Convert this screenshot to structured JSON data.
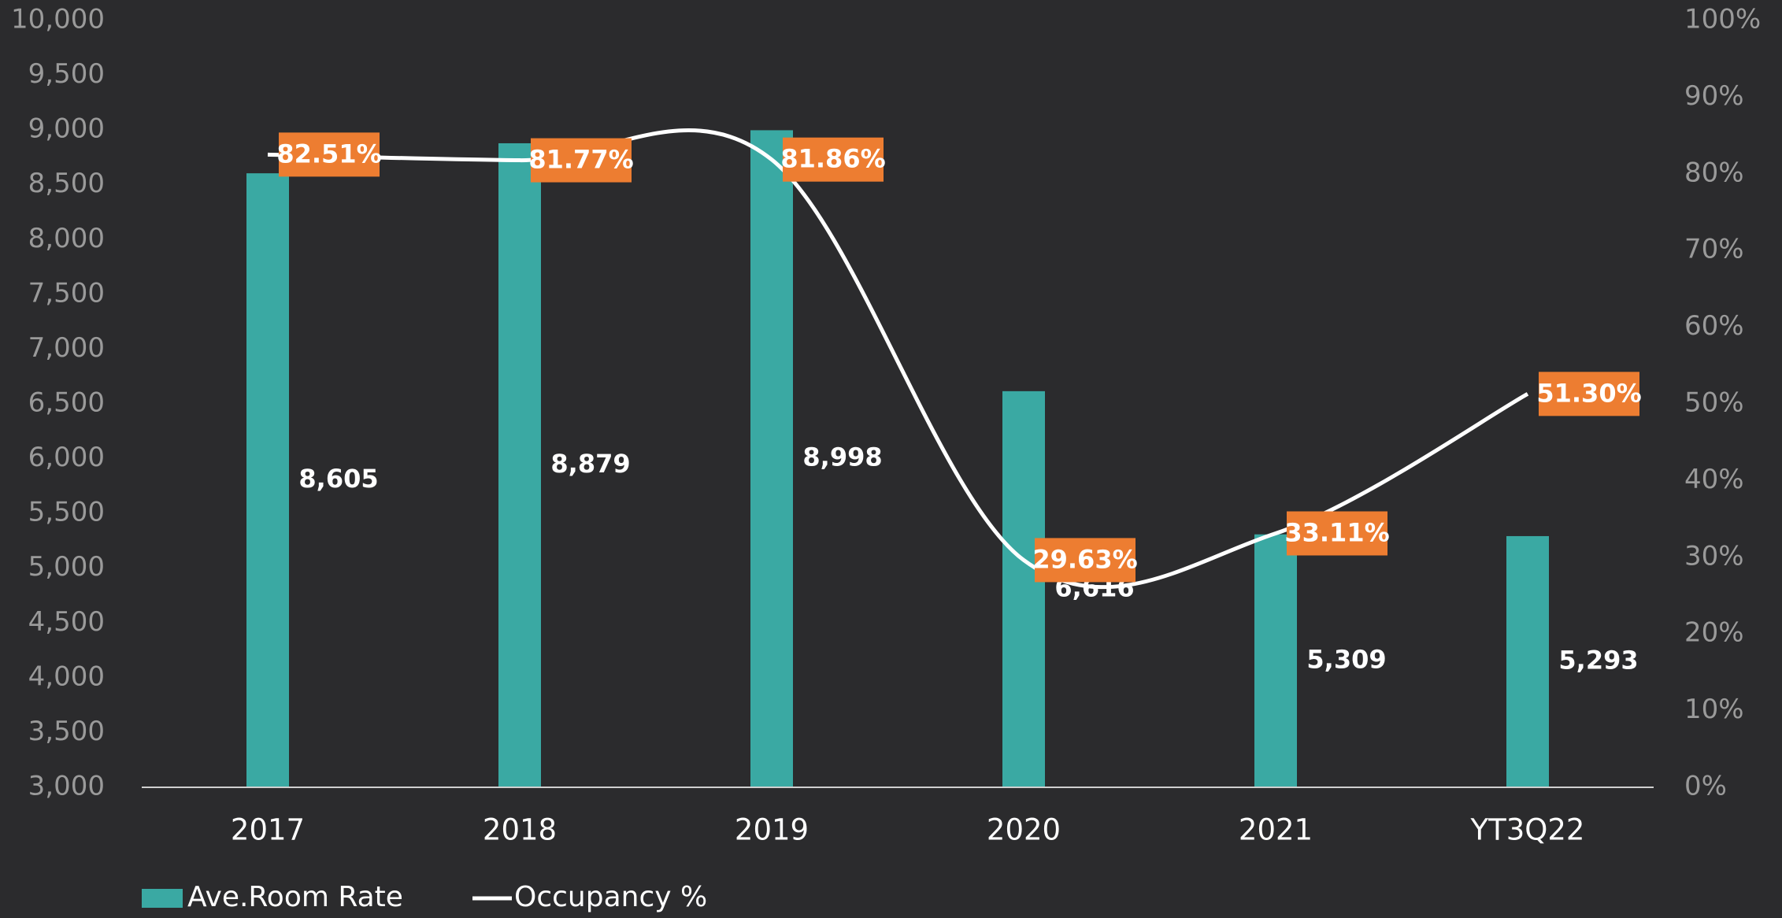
{
  "chart_data": {
    "type": "bar",
    "categories": [
      "2017",
      "2018",
      "2019",
      "2020",
      "2021",
      "YT3Q22"
    ],
    "series": [
      {
        "name": "Ave.Room Rate",
        "type": "bar",
        "color": "#3aa9a3",
        "values": [
          8605,
          8879,
          8998,
          6616,
          5309,
          5293
        ],
        "value_labels": [
          "8,605",
          "8,879",
          "8,998",
          "6,616",
          "5,309",
          "5,293"
        ]
      },
      {
        "name": "Occupancy %",
        "type": "line",
        "axis": "y2",
        "color": "#ffffff",
        "label_color": "#ed7d31",
        "values": [
          82.51,
          81.77,
          81.86,
          29.63,
          33.11,
          51.3
        ],
        "value_labels": [
          "82.51%",
          "81.77%",
          "81.86%",
          "29.63%",
          "33.11%",
          "51.30%"
        ]
      }
    ],
    "ylim": [
      3000,
      10000
    ],
    "yticks": [
      {
        "value": 3000,
        "label": "3,000"
      },
      {
        "value": 3500,
        "label": "3,500"
      },
      {
        "value": 4000,
        "label": "4,000"
      },
      {
        "value": 4500,
        "label": "4,500"
      },
      {
        "value": 5000,
        "label": "5,000"
      },
      {
        "value": 5500,
        "label": "5,500"
      },
      {
        "value": 6000,
        "label": "6,000"
      },
      {
        "value": 6500,
        "label": "6,500"
      },
      {
        "value": 7000,
        "label": "7,000"
      },
      {
        "value": 7500,
        "label": "7,500"
      },
      {
        "value": 8000,
        "label": "8,000"
      },
      {
        "value": 8500,
        "label": "8,500"
      },
      {
        "value": 9000,
        "label": "9,000"
      },
      {
        "value": 9500,
        "label": "9,500"
      },
      {
        "value": 10000,
        "label": "10,000"
      }
    ],
    "y2lim": [
      0,
      100
    ],
    "y2ticks": [
      {
        "value": 0,
        "label": "0%"
      },
      {
        "value": 10,
        "label": "10%"
      },
      {
        "value": 20,
        "label": "20%"
      },
      {
        "value": 30,
        "label": "30%"
      },
      {
        "value": 40,
        "label": "40%"
      },
      {
        "value": 50,
        "label": "50%"
      },
      {
        "value": 60,
        "label": "60%"
      },
      {
        "value": 70,
        "label": "70%"
      },
      {
        "value": 80,
        "label": "80%"
      },
      {
        "value": 90,
        "label": "90%"
      },
      {
        "value": 100,
        "label": "100%"
      }
    ],
    "grid": false,
    "legend": "bottom-left"
  }
}
